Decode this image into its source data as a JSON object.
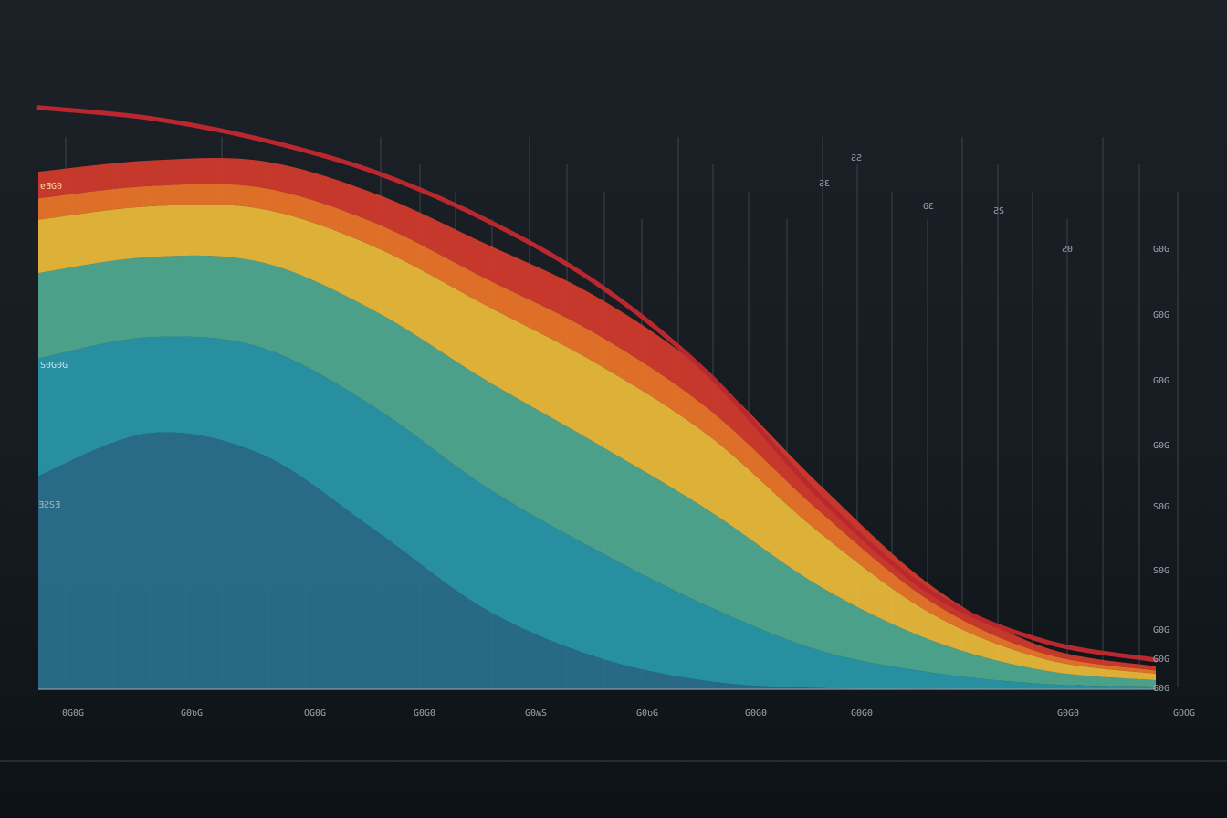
{
  "chart_data": {
    "type": "area",
    "title": "",
    "xlabel": "",
    "ylabel": "",
    "grid": true,
    "legend": "none",
    "x_tick_labels": [
      "0G0G",
      "G0ʋG",
      "OG0G",
      "G0G0",
      "G0ʍS",
      "G0ʋG",
      "G0G0",
      "G0G0",
      "G0G0",
      "GOOG"
    ],
    "y_tick_labels": [
      "G0G",
      "G0G",
      "G0G",
      "G0G",
      "S0G",
      "S0G",
      "G0G",
      "G0G",
      "G0G"
    ],
    "left_labels": [
      "ɐƎG0",
      "S0G0G",
      "ƎƧSƎ"
    ],
    "peak_labels": [
      "ƧƧ",
      "ƧƐ",
      "GƐ",
      "ƧS",
      "Ƨ0"
    ],
    "stack_bottom_to_top": [
      "dark blue",
      "teal",
      "green",
      "yellow",
      "orange",
      "red"
    ],
    "x": [
      0,
      1,
      2,
      3,
      4,
      5,
      6,
      7,
      8,
      9,
      10
    ],
    "series": [
      {
        "color": "#2a6f8c",
        "values": [
          4.0,
          4.8,
          4.4,
          3.0,
          1.5,
          0.6,
          0.15,
          0.02,
          0.01,
          0.0,
          0.0
        ]
      },
      {
        "color": "#2896a8",
        "values": [
          2.2,
          1.8,
          2.0,
          2.3,
          2.3,
          2.0,
          1.4,
          0.7,
          0.3,
          0.1,
          0.05
        ]
      },
      {
        "color": "#4fa88f",
        "values": [
          1.6,
          1.5,
          1.6,
          1.8,
          2.0,
          2.0,
          1.8,
          1.2,
          0.6,
          0.25,
          0.12
        ]
      },
      {
        "color": "#e8b83a",
        "values": [
          1.0,
          0.95,
          1.0,
          1.2,
          1.4,
          1.5,
          1.4,
          1.0,
          0.5,
          0.22,
          0.12
        ]
      },
      {
        "color": "#e9742a",
        "values": [
          0.4,
          0.38,
          0.4,
          0.45,
          0.5,
          0.55,
          0.5,
          0.4,
          0.22,
          0.1,
          0.06
        ]
      },
      {
        "color": "#cf3a2c",
        "values": [
          0.5,
          0.48,
          0.5,
          0.55,
          0.65,
          0.7,
          0.65,
          0.5,
          0.3,
          0.12,
          0.08
        ]
      }
    ],
    "top_line": {
      "color": "#b8282e",
      "values": [
        10.9,
        10.7,
        10.3,
        9.7,
        8.8,
        7.6,
        5.9,
        3.6,
        1.8,
        0.9,
        0.55
      ]
    },
    "ylim": [
      0,
      11
    ]
  }
}
